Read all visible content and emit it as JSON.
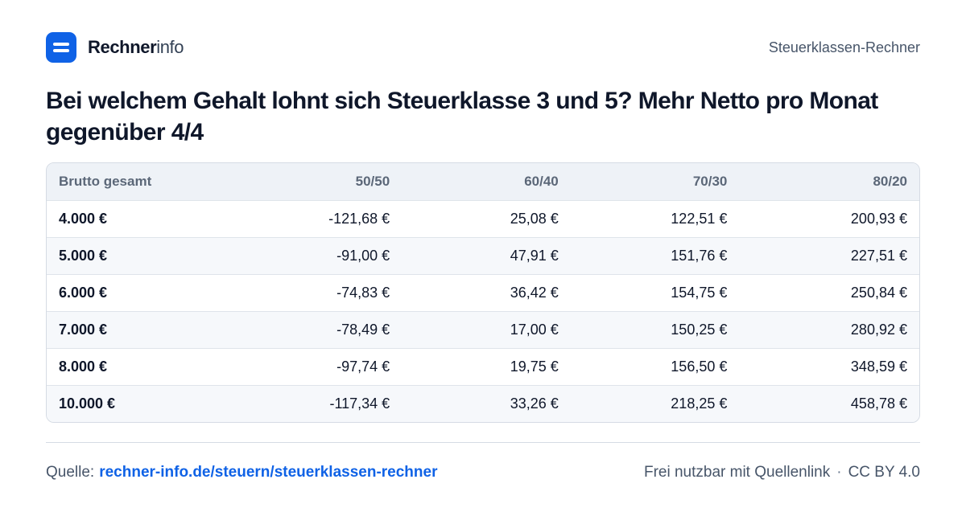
{
  "header": {
    "brand_bold": "Rechner",
    "brand_light": "info",
    "right_label": "Steuerklassen-Rechner"
  },
  "title": "Bei welchem Gehalt lohnt sich Steuerklasse 3 und 5? Mehr Netto pro Monat gegenüber 4/4",
  "table": {
    "headers": [
      "Brutto gesamt",
      "50/50",
      "60/40",
      "70/30",
      "80/20"
    ],
    "rows": [
      [
        "4.000 €",
        "-121,68 €",
        "25,08 €",
        "122,51 €",
        "200,93 €"
      ],
      [
        "5.000 €",
        "-91,00 €",
        "47,91 €",
        "151,76 €",
        "227,51 €"
      ],
      [
        "6.000 €",
        "-74,83 €",
        "36,42 €",
        "154,75 €",
        "250,84 €"
      ],
      [
        "7.000 €",
        "-78,49 €",
        "17,00 €",
        "150,25 €",
        "280,92 €"
      ],
      [
        "8.000 €",
        "-97,74 €",
        "19,75 €",
        "156,50 €",
        "348,59 €"
      ],
      [
        "10.000 €",
        "-117,34 €",
        "33,26 €",
        "218,25 €",
        "458,78 €"
      ]
    ]
  },
  "footer": {
    "source_label": "Quelle:",
    "source_link": "rechner-info.de/steuern/steuerklassen-rechner",
    "license_text": "Frei nutzbar mit Quellenlink",
    "separator": "·",
    "license_name": "CC BY 4.0"
  },
  "colors": {
    "accent": "#0f62e6",
    "header_bg": "#eef2f7",
    "border": "#d5dbe4"
  },
  "icons": {
    "logo": "logo-icon"
  }
}
